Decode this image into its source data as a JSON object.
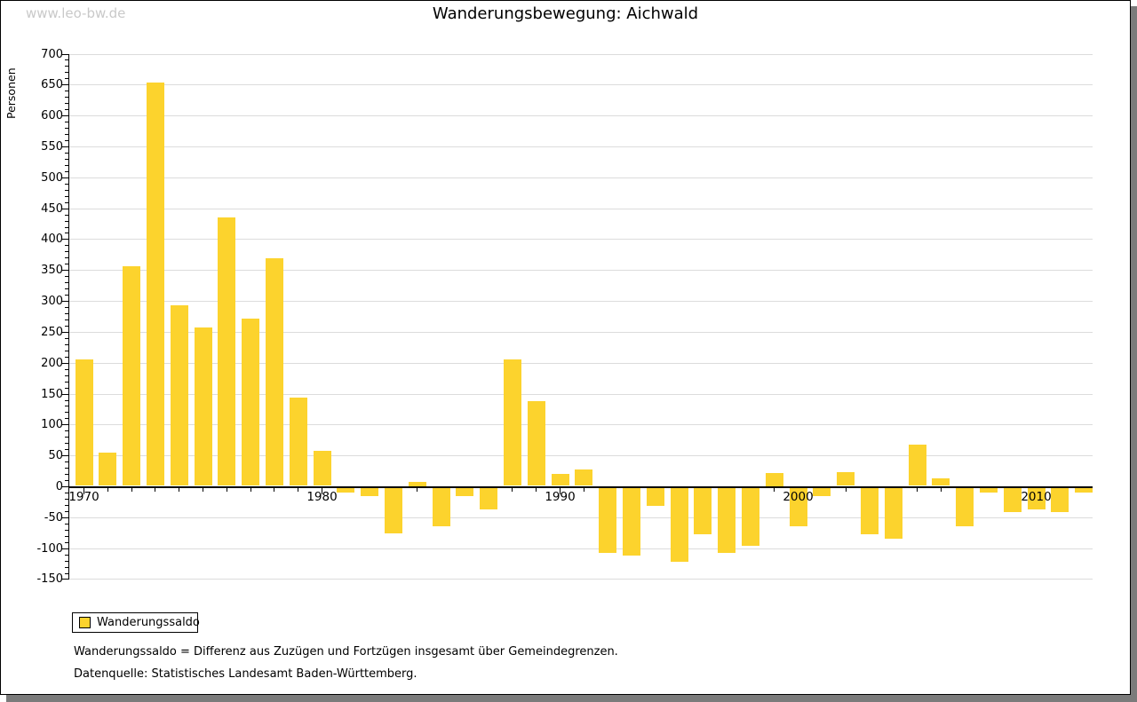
{
  "watermark": "www.leo-bw.de",
  "title": "Wanderungsbewegung: Aichwald",
  "legend": {
    "label": "Wanderungssaldo",
    "swatch_color": "#fcd32d"
  },
  "footnotes": [
    "Wanderungssaldo = Differenz aus Zuzügen und Fortzügen insgesamt über Gemeindegrenzen.",
    "Datenquelle: Statistisches Landesamt Baden-Württemberg."
  ],
  "colors": {
    "bar": "#fcd32d",
    "grid": "#dcdcdc",
    "axis": "#000000",
    "watermark": "#c9c9c9",
    "shadow": "#7b7b7b"
  },
  "chart_data": {
    "type": "bar",
    "title": "Wanderungsbewegung: Aichwald",
    "xlabel": "",
    "ylabel": "Personen",
    "ylim": [
      -150,
      700
    ],
    "y_tick_step": 50,
    "y_minor_tick_step": 10,
    "x_labeled_ticks": [
      1970,
      1980,
      1990,
      2000,
      2010
    ],
    "grid": true,
    "legend_position": "bottom-left",
    "categories": [
      1970,
      1971,
      1972,
      1973,
      1974,
      1975,
      1976,
      1977,
      1978,
      1979,
      1980,
      1981,
      1982,
      1983,
      1984,
      1985,
      1986,
      1987,
      1988,
      1989,
      1990,
      1991,
      1992,
      1993,
      1994,
      1995,
      1996,
      1997,
      1998,
      1999,
      2000,
      2001,
      2002,
      2003,
      2004,
      2005,
      2006,
      2007,
      2008,
      2009,
      2010,
      2011,
      2012
    ],
    "series": [
      {
        "name": "Wanderungssaldo",
        "color": "#fcd32d",
        "values": [
          205,
          54,
          356,
          653,
          292,
          256,
          435,
          270,
          369,
          143,
          57,
          -8,
          -14,
          -74,
          7,
          -63,
          -14,
          -35,
          205,
          137,
          20,
          27,
          -105,
          -110,
          -30,
          -120,
          -76,
          -105,
          -94,
          21,
          -63,
          -13,
          22,
          -76,
          -82,
          67,
          12,
          -63,
          -8,
          -39,
          -35,
          -39,
          -8
        ]
      }
    ]
  }
}
